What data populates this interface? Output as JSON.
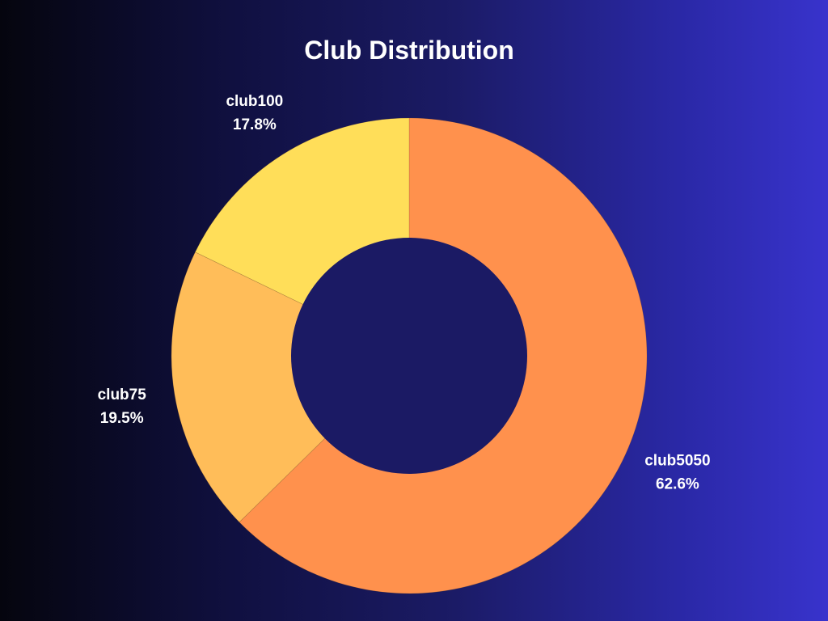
{
  "chart_data": {
    "type": "pie",
    "variant": "donut",
    "title": "Club Distribution",
    "slices": [
      {
        "name": "club5050",
        "value": 62.6,
        "label": "62.6%",
        "color": "#ff914d"
      },
      {
        "name": "club75",
        "value": 19.5,
        "label": "19.5%",
        "color": "#ffbd59"
      },
      {
        "name": "club100",
        "value": 17.8,
        "label": "17.8%",
        "color": "#ffde59"
      }
    ],
    "legend": "none",
    "hole_color": "#1b1a64",
    "start": "top",
    "direction": "clockwise"
  }
}
